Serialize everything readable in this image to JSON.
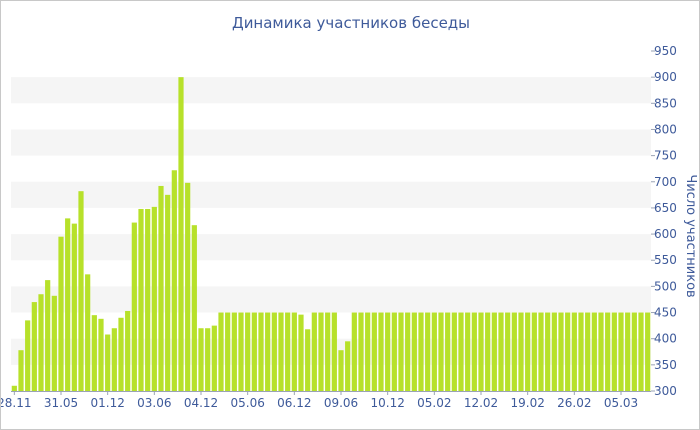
{
  "chart_data": {
    "type": "bar",
    "title": "Динамика участников беседы",
    "xlabel": "",
    "ylabel": "Число участников",
    "ylim": [
      300,
      950
    ],
    "y_axis_side": "right",
    "grid": "alternating horizontal bands",
    "bar_color": "#b7e12a",
    "text_color": "#3e5a9a",
    "band_color": "#f5f5f5",
    "x_tick_labels": [
      {
        "index": 0,
        "label": "28.11"
      },
      {
        "index": 7,
        "label": "31.05"
      },
      {
        "index": 14,
        "label": "01.12"
      },
      {
        "index": 21,
        "label": "03.06"
      },
      {
        "index": 28,
        "label": "04.12"
      },
      {
        "index": 35,
        "label": "05.06"
      },
      {
        "index": 42,
        "label": "06.12"
      },
      {
        "index": 49,
        "label": "09.06"
      },
      {
        "index": 56,
        "label": "10.12"
      },
      {
        "index": 63,
        "label": "05.02"
      },
      {
        "index": 70,
        "label": "12.02"
      },
      {
        "index": 77,
        "label": "19.02"
      },
      {
        "index": 84,
        "label": "26.02"
      },
      {
        "index": 91,
        "label": "05.03"
      }
    ],
    "y_ticks": [
      300,
      350,
      400,
      450,
      500,
      550,
      600,
      650,
      700,
      750,
      800,
      850,
      900,
      950
    ],
    "values": [
      310,
      378,
      435,
      470,
      485,
      512,
      482,
      595,
      630,
      620,
      682,
      523,
      445,
      438,
      408,
      420,
      440,
      453,
      622,
      648,
      648,
      652,
      692,
      675,
      722,
      900,
      698,
      617,
      420,
      420,
      425,
      450,
      450,
      450,
      450,
      450,
      450,
      450,
      450,
      450,
      450,
      450,
      450,
      446,
      418,
      450,
      450,
      450,
      450,
      378,
      395,
      450,
      450,
      450,
      450,
      450,
      450,
      450,
      450,
      450,
      450,
      450,
      450,
      450,
      450,
      450,
      450,
      450,
      450,
      450,
      450,
      450,
      450,
      450,
      450,
      450,
      450,
      450,
      450,
      450,
      450,
      450,
      450,
      450,
      450,
      450,
      450,
      450,
      450,
      450,
      450,
      450,
      450,
      450,
      450,
      450
    ]
  }
}
